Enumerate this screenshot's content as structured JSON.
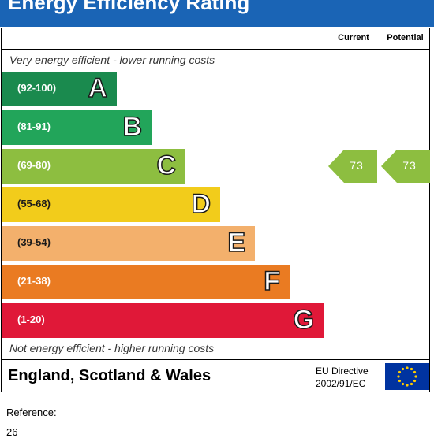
{
  "title": "Energy Efficiency Rating",
  "columns": {
    "current": "Current",
    "potential": "Potential"
  },
  "notes": {
    "top": "Very energy efficient - lower running costs",
    "bottom": "Not energy efficient - higher running costs"
  },
  "chart_data": {
    "type": "bar",
    "title": "Energy Efficiency Rating",
    "bands": [
      {
        "range": "(92-100)",
        "letter": "A",
        "color": "#1a8a4e"
      },
      {
        "range": "(81-91)",
        "letter": "B",
        "color": "#22a55a"
      },
      {
        "range": "(69-80)",
        "letter": "C",
        "color": "#8dbe40"
      },
      {
        "range": "(55-68)",
        "letter": "D",
        "color": "#f2cc1b"
      },
      {
        "range": "(39-54)",
        "letter": "E",
        "color": "#f3b06c"
      },
      {
        "range": "(21-38)",
        "letter": "F",
        "color": "#ea7b22"
      },
      {
        "range": "(1-20)",
        "letter": "G",
        "color": "#e01838"
      }
    ],
    "current": {
      "value": "73",
      "band": "C",
      "color": "#8dbe40"
    },
    "potential": {
      "value": "73",
      "band": "C",
      "color": "#8dbe40"
    }
  },
  "footer": {
    "region": "England, Scotland & Wales",
    "directive_line1": "EU Directive",
    "directive_line2": "2002/91/EC",
    "flag_colors": {
      "background": "#0033a0",
      "stars": "#ffcc00"
    }
  },
  "reference": {
    "label": "Reference:",
    "value": "26"
  }
}
